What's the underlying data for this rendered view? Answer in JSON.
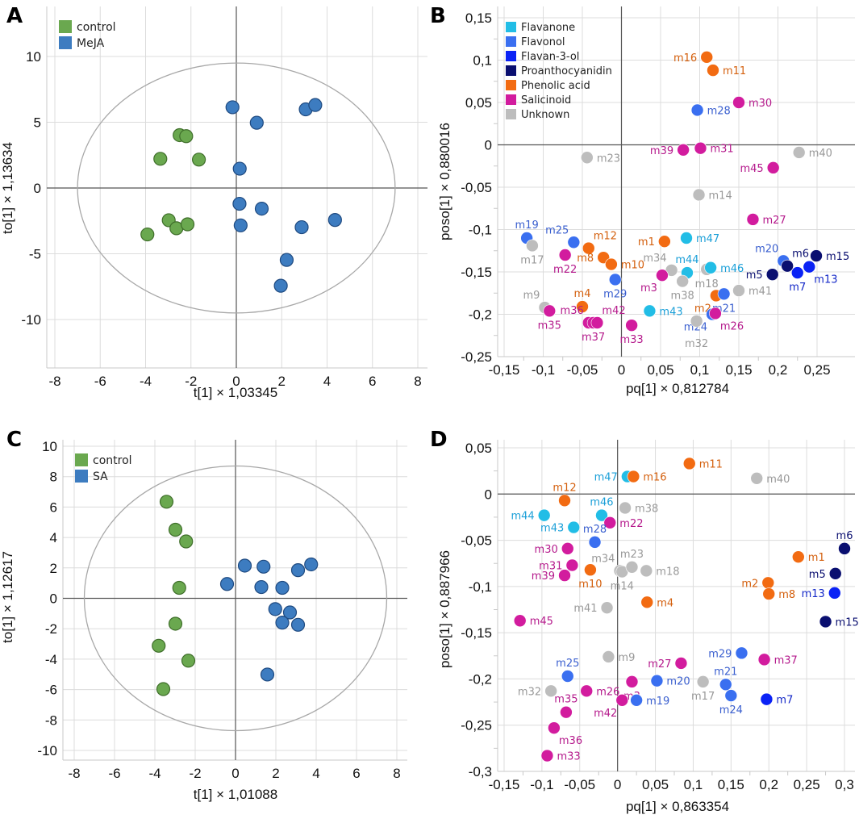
{
  "chart_data": [
    {
      "panel": "A",
      "type": "scatter",
      "xlabel": "t[1] × 1,03345",
      "ylabel": "to[1] × 1,13634",
      "xticks": [
        [
          -8,
          "-8"
        ],
        [
          -6,
          "-6"
        ],
        [
          -4,
          "-4"
        ],
        [
          -2,
          "-2"
        ],
        [
          0,
          "0"
        ],
        [
          2,
          "2"
        ],
        [
          4,
          "4"
        ],
        [
          6,
          "6"
        ],
        [
          8,
          "8"
        ]
      ],
      "yticks": [
        [
          10,
          "10"
        ],
        [
          5,
          "5"
        ],
        [
          0,
          "0"
        ],
        [
          -5,
          "-5"
        ],
        [
          -10,
          "-10"
        ]
      ],
      "ellipse": {
        "rx": 7.0,
        "ry": 9.5
      },
      "grid": true,
      "legend_position": "top-left",
      "series": [
        {
          "name": "control",
          "color": "#6aa84f",
          "edge": "#3f6e2a",
          "points": [
            [
              -2.5,
              4.02
            ],
            [
              -2.21,
              3.94
            ],
            [
              -3.35,
              2.22
            ],
            [
              -1.65,
              2.16
            ],
            [
              -2.98,
              -2.45
            ],
            [
              -2.64,
              -3.06
            ],
            [
              -2.15,
              -2.76
            ],
            [
              -3.92,
              -3.53
            ]
          ]
        },
        {
          "name": "MeJA",
          "color": "#3d7cc0",
          "edge": "#1f4a80",
          "points": [
            [
              -0.17,
              6.14
            ],
            [
              0.9,
              4.96
            ],
            [
              3.06,
              5.98
            ],
            [
              3.48,
              6.31
            ],
            [
              0.15,
              1.47
            ],
            [
              0.14,
              -1.2
            ],
            [
              0.19,
              -2.84
            ],
            [
              1.12,
              -1.57
            ],
            [
              2.88,
              -2.98
            ],
            [
              4.35,
              -2.43
            ],
            [
              2.22,
              -5.47
            ],
            [
              1.96,
              -7.43
            ]
          ]
        }
      ]
    },
    {
      "panel": "B",
      "type": "scatter",
      "xlabel": "pq[1] × 0,812784",
      "ylabel": "poso[1] × 0,880016",
      "xticks": [
        [
          -0.15,
          "-0,15"
        ],
        [
          -0.1,
          "-0,1"
        ],
        [
          -0.05,
          "-0,05"
        ],
        [
          0,
          "0"
        ],
        [
          0.05,
          "0,05"
        ],
        [
          0.1,
          "0,1"
        ],
        [
          0.15,
          "0,15"
        ],
        [
          0.2,
          "0,2"
        ],
        [
          0.25,
          "0,25"
        ]
      ],
      "yticks": [
        [
          0.15,
          "0,15"
        ],
        [
          0.1,
          "0,1"
        ],
        [
          0.05,
          "0,05"
        ],
        [
          0,
          "0"
        ],
        [
          -0.05,
          "-0,05"
        ],
        [
          -0.1,
          "-0,1"
        ],
        [
          -0.15,
          "-0,15"
        ],
        [
          -0.2,
          "-0,2"
        ],
        [
          -0.25,
          "-0,25"
        ]
      ],
      "grid": true,
      "legend_position": "top-left",
      "points": [
        [
          "m16",
          "P",
          0.109,
          0.1035
        ],
        [
          "m11",
          "P",
          0.117,
          0.088
        ],
        [
          "m28",
          "FO",
          0.097,
          0.041
        ],
        [
          "m30",
          "S",
          0.15,
          0.05
        ],
        [
          "m39",
          "S",
          0.079,
          -0.006
        ],
        [
          "m31",
          "S",
          0.101,
          -0.004
        ],
        [
          "m23",
          "U",
          -0.044,
          -0.015
        ],
        [
          "m40",
          "U",
          0.227,
          -0.009
        ],
        [
          "m45",
          "S",
          0.194,
          -0.027
        ],
        [
          "m14",
          "U",
          0.099,
          -0.059
        ],
        [
          "m27",
          "S",
          0.168,
          -0.088
        ],
        [
          "m19",
          "FO",
          -0.121,
          -0.11
        ],
        [
          "m17",
          "U",
          -0.114,
          -0.119
        ],
        [
          "m25",
          "FO",
          -0.061,
          -0.115
        ],
        [
          "m22",
          "S",
          -0.072,
          -0.13
        ],
        [
          "m12",
          "P",
          -0.042,
          -0.122
        ],
        [
          "m8",
          "P",
          -0.023,
          -0.133
        ],
        [
          "m10",
          "P",
          -0.013,
          -0.141
        ],
        [
          "m29",
          "FO",
          -0.008,
          -0.159
        ],
        [
          "m1",
          "P",
          0.055,
          -0.114
        ],
        [
          "m47",
          "FA",
          0.083,
          -0.11
        ],
        [
          "m34",
          "U",
          0.064,
          -0.148
        ],
        [
          "m3",
          "S",
          0.052,
          -0.154
        ],
        [
          "m44",
          "FA",
          0.084,
          -0.151
        ],
        [
          "m38",
          "U",
          0.078,
          -0.161
        ],
        [
          "m18",
          "U",
          0.109,
          -0.147
        ],
        [
          "m46",
          "FA",
          0.114,
          -0.145
        ],
        [
          "m2",
          "P",
          0.121,
          -0.178
        ],
        [
          "m21",
          "FO",
          0.131,
          -0.176
        ],
        [
          "m41",
          "U",
          0.15,
          -0.172
        ],
        [
          "m24",
          "FO",
          0.116,
          -0.2
        ],
        [
          "m26",
          "S",
          0.12,
          -0.199
        ],
        [
          "m32",
          "U",
          0.096,
          -0.208
        ],
        [
          "m43",
          "FA",
          0.036,
          -0.196
        ],
        [
          "m20",
          "FO",
          0.207,
          -0.137
        ],
        [
          "m6",
          "PR",
          0.212,
          -0.143
        ],
        [
          "m5",
          "PR",
          0.193,
          -0.153
        ],
        [
          "m7",
          "F3",
          0.225,
          -0.151
        ],
        [
          "m13",
          "F3",
          0.24,
          -0.144
        ],
        [
          "m15",
          "PR",
          0.249,
          -0.131
        ],
        [
          "m9",
          "U",
          -0.098,
          -0.192
        ],
        [
          "m35",
          "S",
          -0.092,
          -0.196
        ],
        [
          "m4",
          "P",
          -0.05,
          -0.191
        ],
        [
          "m36",
          "S",
          -0.042,
          -0.21
        ],
        [
          "m37",
          "S",
          -0.036,
          -0.21
        ],
        [
          "m42",
          "S",
          -0.031,
          -0.21
        ],
        [
          "m33",
          "S",
          0.013,
          -0.213
        ]
      ]
    },
    {
      "panel": "C",
      "type": "scatter",
      "xlabel": "t[1] × 1,01088",
      "ylabel": "to[1] × 1,12617",
      "xticks": [
        [
          -8,
          "-8"
        ],
        [
          -6,
          "-6"
        ],
        [
          -4,
          "-4"
        ],
        [
          -2,
          "-2"
        ],
        [
          0,
          "0"
        ],
        [
          2,
          "2"
        ],
        [
          4,
          "4"
        ],
        [
          6,
          "6"
        ],
        [
          8,
          "8"
        ]
      ],
      "yticks": [
        [
          10,
          "10"
        ],
        [
          8,
          "8"
        ],
        [
          6,
          "6"
        ],
        [
          4,
          "4"
        ],
        [
          2,
          "2"
        ],
        [
          0,
          "0"
        ],
        [
          -2,
          "-2"
        ],
        [
          -4,
          "-4"
        ],
        [
          -6,
          "-6"
        ],
        [
          -8,
          "-8"
        ],
        [
          -10,
          "-10"
        ]
      ],
      "ellipse": {
        "rx": 7.5,
        "ry": 8.7
      },
      "grid": true,
      "legend_position": "top-left",
      "series": [
        {
          "name": "control",
          "color": "#6aa84f",
          "edge": "#3f6e2a",
          "points": [
            [
              -3.42,
              6.35
            ],
            [
              -2.98,
              4.51
            ],
            [
              -2.45,
              3.74
            ],
            [
              -2.79,
              0.69
            ],
            [
              -2.98,
              -1.67
            ],
            [
              -3.81,
              -3.12
            ],
            [
              -2.34,
              -4.1
            ],
            [
              -3.58,
              -5.97
            ]
          ]
        },
        {
          "name": "SA",
          "color": "#3d7cc0",
          "edge": "#1f4a80",
          "points": [
            [
              0.46,
              2.15
            ],
            [
              1.39,
              2.08
            ],
            [
              3.1,
              1.85
            ],
            [
              3.75,
              2.23
            ],
            [
              -0.42,
              0.94
            ],
            [
              1.28,
              0.74
            ],
            [
              2.32,
              0.69
            ],
            [
              1.97,
              -0.71
            ],
            [
              2.7,
              -0.93
            ],
            [
              2.32,
              -1.6
            ],
            [
              3.1,
              -1.74
            ],
            [
              1.58,
              -5.01
            ]
          ]
        }
      ]
    },
    {
      "panel": "D",
      "type": "scatter",
      "xlabel": "pq[1] × 0,863354",
      "ylabel": "poso[1] × 0,887966",
      "xticks": [
        [
          -0.15,
          "-0,15"
        ],
        [
          -0.1,
          "-0,1"
        ],
        [
          -0.05,
          "-0,05"
        ],
        [
          0,
          "0"
        ],
        [
          0.05,
          "0,05"
        ],
        [
          0.1,
          "0,1"
        ],
        [
          0.15,
          "0,15"
        ],
        [
          0.2,
          "0,2"
        ],
        [
          0.25,
          "0,25"
        ],
        [
          0.3,
          "0,3"
        ]
      ],
      "yticks": [
        [
          0.05,
          "0,05"
        ],
        [
          0,
          "0"
        ],
        [
          -0.05,
          "-0,05"
        ],
        [
          -0.1,
          "-0,1"
        ],
        [
          -0.15,
          "-0,15"
        ],
        [
          -0.2,
          "-0,2"
        ],
        [
          -0.25,
          "-0,25"
        ],
        [
          -0.3,
          "-0,3"
        ]
      ],
      "grid": true,
      "points": [
        [
          "m11",
          "P",
          0.095,
          0.033
        ],
        [
          "m47",
          "FA",
          0.013,
          0.019
        ],
        [
          "m16",
          "P",
          0.021,
          0.019
        ],
        [
          "m40",
          "U",
          0.184,
          0.017
        ],
        [
          "m12",
          "P",
          -0.07,
          -0.007
        ],
        [
          "m44",
          "FA",
          -0.097,
          -0.023
        ],
        [
          "m46",
          "FA",
          -0.021,
          -0.023
        ],
        [
          "m38",
          "U",
          0.01,
          -0.015
        ],
        [
          "m22",
          "S",
          -0.01,
          -0.031
        ],
        [
          "m43",
          "FA",
          -0.058,
          -0.036
        ],
        [
          "m28",
          "FO",
          -0.03,
          -0.052
        ],
        [
          "m30",
          "S",
          -0.066,
          -0.059
        ],
        [
          "m31",
          "S",
          -0.06,
          -0.077
        ],
        [
          "m39",
          "S",
          -0.07,
          -0.088
        ],
        [
          "m10",
          "P",
          -0.036,
          -0.082
        ],
        [
          "m34",
          "U",
          0.003,
          -0.083
        ],
        [
          "m14",
          "U",
          0.006,
          -0.084
        ],
        [
          "m23",
          "U",
          0.019,
          -0.079
        ],
        [
          "m18",
          "U",
          0.038,
          -0.083
        ],
        [
          "m41",
          "U",
          -0.014,
          -0.123
        ],
        [
          "m4",
          "P",
          0.039,
          -0.117
        ],
        [
          "m1",
          "P",
          0.239,
          -0.068
        ],
        [
          "m6",
          "PR",
          0.3,
          -0.059
        ],
        [
          "m5",
          "PR",
          0.288,
          -0.086
        ],
        [
          "m2",
          "P",
          0.199,
          -0.096
        ],
        [
          "m8",
          "P",
          0.2,
          -0.108
        ],
        [
          "m13",
          "F3",
          0.287,
          -0.107
        ],
        [
          "m15",
          "PR",
          0.275,
          -0.138
        ],
        [
          "m45",
          "S",
          -0.129,
          -0.137
        ],
        [
          "m29",
          "FO",
          0.164,
          -0.172
        ],
        [
          "m37",
          "S",
          0.194,
          -0.179
        ],
        [
          "m9",
          "U",
          -0.012,
          -0.176
        ],
        [
          "m27",
          "S",
          0.084,
          -0.183
        ],
        [
          "m25",
          "FO",
          -0.066,
          -0.197
        ],
        [
          "m32",
          "U",
          -0.088,
          -0.213
        ],
        [
          "m26",
          "S",
          -0.041,
          -0.213
        ],
        [
          "m3",
          "S",
          0.019,
          -0.203
        ],
        [
          "m20",
          "FO",
          0.052,
          -0.202
        ],
        [
          "m17",
          "U",
          0.113,
          -0.203
        ],
        [
          "m21",
          "FO",
          0.143,
          -0.206
        ],
        [
          "m24",
          "FO",
          0.15,
          -0.218
        ],
        [
          "m7",
          "F3",
          0.197,
          -0.222
        ],
        [
          "m42",
          "S",
          0.006,
          -0.223
        ],
        [
          "m19",
          "FO",
          0.025,
          -0.223
        ],
        [
          "m35",
          "S",
          -0.068,
          -0.236
        ],
        [
          "m36",
          "S",
          -0.084,
          -0.253
        ],
        [
          "m33",
          "S",
          -0.093,
          -0.283
        ]
      ]
    }
  ],
  "classes": [
    {
      "code": "FA",
      "name": "Flavanone",
      "color": "#22bde6",
      "text": "#1a9fd8"
    },
    {
      "code": "FO",
      "name": "Flavonol",
      "color": "#3a6ff0",
      "text": "#3a5fcf"
    },
    {
      "code": "F3",
      "name": "Flavan-3-ol",
      "color": "#0a22f5",
      "text": "#1428c8"
    },
    {
      "code": "PR",
      "name": "Proanthocyanidin",
      "color": "#0a0f70",
      "text": "#0a0f70"
    },
    {
      "code": "P",
      "name": "Phenolic acid",
      "color": "#f26b12",
      "text": "#d4600e"
    },
    {
      "code": "S",
      "name": "Salicinoid",
      "color": "#d21c9e",
      "text": "#b51a8c"
    },
    {
      "code": "U",
      "name": "Unknown",
      "color": "#bdbdbd",
      "text": "#999999"
    }
  ]
}
